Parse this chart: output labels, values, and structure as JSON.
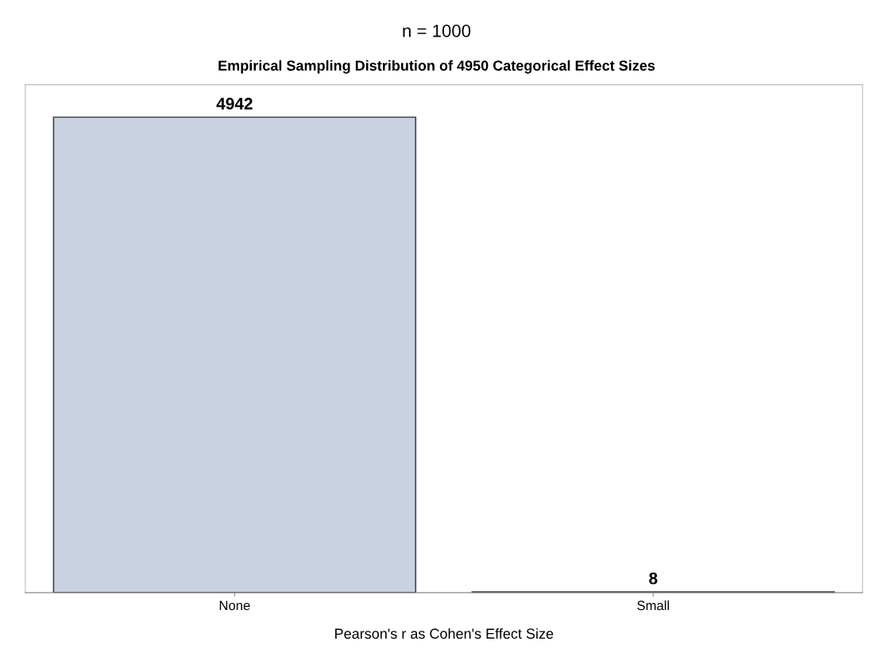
{
  "chart_data": {
    "type": "bar",
    "title": "n = 1000",
    "subtitle": "Empirical Sampling Distribution of 4950 Categorical Effect Sizes",
    "xlabel": "Pearson's r as Cohen's Effect Size",
    "categories": [
      "None",
      "Small"
    ],
    "values": [
      4942,
      8
    ],
    "color": "#c8d2e0",
    "ylim": [
      0,
      5280
    ],
    "data_labels": true,
    "tick_labels": "x",
    "grid": false,
    "legend": false
  }
}
